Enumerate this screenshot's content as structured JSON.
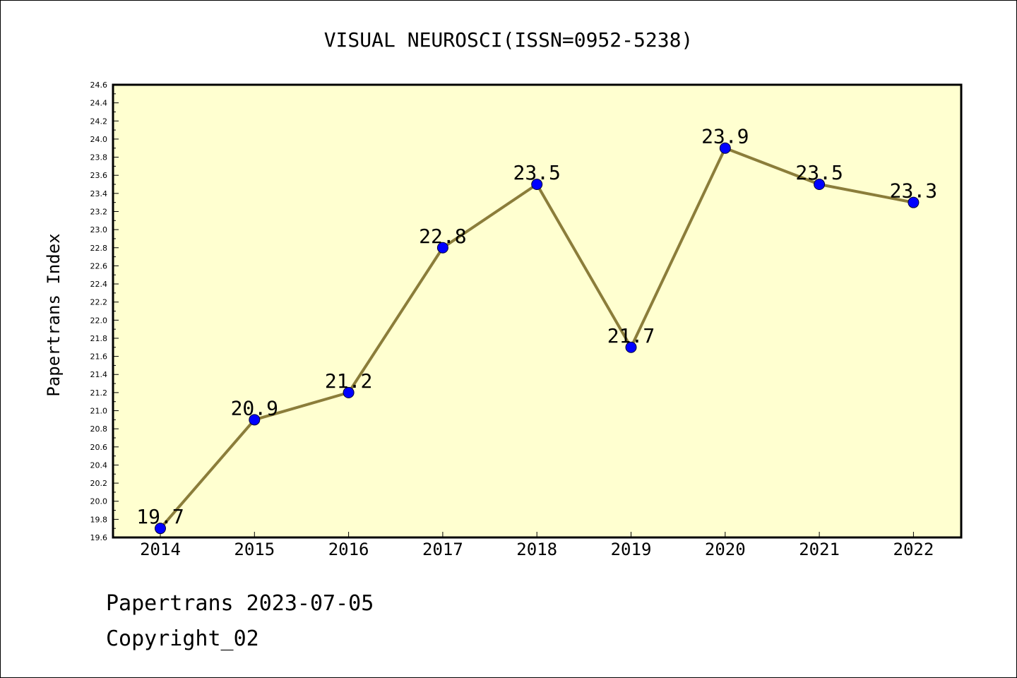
{
  "chart_data": {
    "type": "line",
    "title": "VISUAL NEUROSCI(ISSN=0952-5238)",
    "xlabel": "",
    "ylabel": "Papertrans Index",
    "categories": [
      "2014",
      "2015",
      "2016",
      "2017",
      "2018",
      "2019",
      "2020",
      "2021",
      "2022"
    ],
    "values": [
      19.7,
      20.9,
      21.2,
      22.8,
      23.5,
      21.7,
      23.9,
      23.5,
      23.3
    ],
    "data_labels": [
      "19.7",
      "20.9",
      "21.2",
      "22.8",
      "23.5",
      "21.7",
      "23.9",
      "23.5",
      "23.3"
    ],
    "ylim": [
      19.6,
      24.6
    ],
    "yticks": [
      "19.6",
      "19.8",
      "20.0",
      "20.2",
      "20.4",
      "20.6",
      "20.8",
      "21.0",
      "21.2",
      "21.4",
      "21.6",
      "21.8",
      "22.0",
      "22.2",
      "22.4",
      "22.6",
      "22.8",
      "23.0",
      "23.2",
      "23.4",
      "23.6",
      "23.8",
      "24.0",
      "24.2",
      "24.4",
      "24.6"
    ],
    "grid": false,
    "line_color": "#8b7d3a",
    "marker_color": "#0000ff",
    "plot_background": "#ffffd0"
  },
  "footer": {
    "line1": "Papertrans 2023-07-05",
    "line2": "Copyright_02"
  }
}
